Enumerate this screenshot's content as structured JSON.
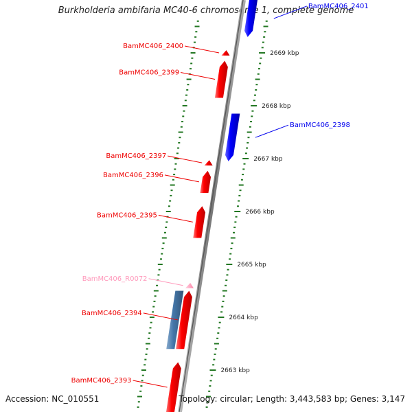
{
  "title": "Burkholderia ambifaria MC40-6 chromosome 1, complete genome",
  "footer": {
    "accession": "Accession: NC_010551",
    "topology": "Topology: circular; Length: 3,443,583 bp; Genes: 3,147"
  },
  "colors": {
    "forward_gene": "#ee0000",
    "reverse_gene": "#0000ee",
    "rna_gene": "#ff99bb",
    "other_gene": "#4477aa",
    "tick": "#227722",
    "backbone": "#888888"
  },
  "genes": [
    {
      "label": "BamMC406_2401",
      "strand": "reverse",
      "type": "cds",
      "kbp_start": 2669.3,
      "kbp_end": 2670.0
    },
    {
      "label": "BamMC406_2400",
      "strand": "forward",
      "type": "cds",
      "kbp_start": 2668.95,
      "kbp_end": 2669.05
    },
    {
      "label": "BamMC406_2399",
      "strand": "forward",
      "type": "cds",
      "kbp_start": 2668.15,
      "kbp_end": 2668.85
    },
    {
      "label": "BamMC406_2398",
      "strand": "reverse",
      "type": "cds",
      "kbp_start": 2666.95,
      "kbp_end": 2667.85
    },
    {
      "label": "BamMC406_2397",
      "strand": "forward",
      "type": "cds",
      "kbp_start": 2666.87,
      "kbp_end": 2666.97
    },
    {
      "label": "BamMC406_2396",
      "strand": "forward",
      "type": "cds",
      "kbp_start": 2666.35,
      "kbp_end": 2666.77
    },
    {
      "label": "BamMC406_2395",
      "strand": "forward",
      "type": "cds",
      "kbp_start": 2665.5,
      "kbp_end": 2666.1
    },
    {
      "label": "BamMC406_R0072",
      "strand": "forward",
      "type": "rna",
      "kbp_start": 2664.55,
      "kbp_end": 2664.65
    },
    {
      "label": "",
      "strand": "reverse",
      "type": "other",
      "kbp_start": 2663.4,
      "kbp_end": 2664.5
    },
    {
      "label": "BamMC406_2394",
      "strand": "forward",
      "type": "cds",
      "kbp_start": 2663.4,
      "kbp_end": 2664.5
    },
    {
      "label": "BamMC406_2393",
      "strand": "forward",
      "type": "cds",
      "kbp_start": 2662.2,
      "kbp_end": 2663.15
    }
  ],
  "scale_labels": [
    {
      "kbp": 2669,
      "text": "2669 kbp"
    },
    {
      "kbp": 2668,
      "text": "2668 kbp"
    },
    {
      "kbp": 2667,
      "text": "2667 kbp"
    },
    {
      "kbp": 2666,
      "text": "2666 kbp"
    },
    {
      "kbp": 2665,
      "text": "2665 kbp"
    },
    {
      "kbp": 2664,
      "text": "2664 kbp"
    },
    {
      "kbp": 2663,
      "text": "2663 kbp"
    }
  ],
  "tick_interval_kbp": 0.1,
  "kbp_range": [
    2662.0,
    2670.3
  ]
}
